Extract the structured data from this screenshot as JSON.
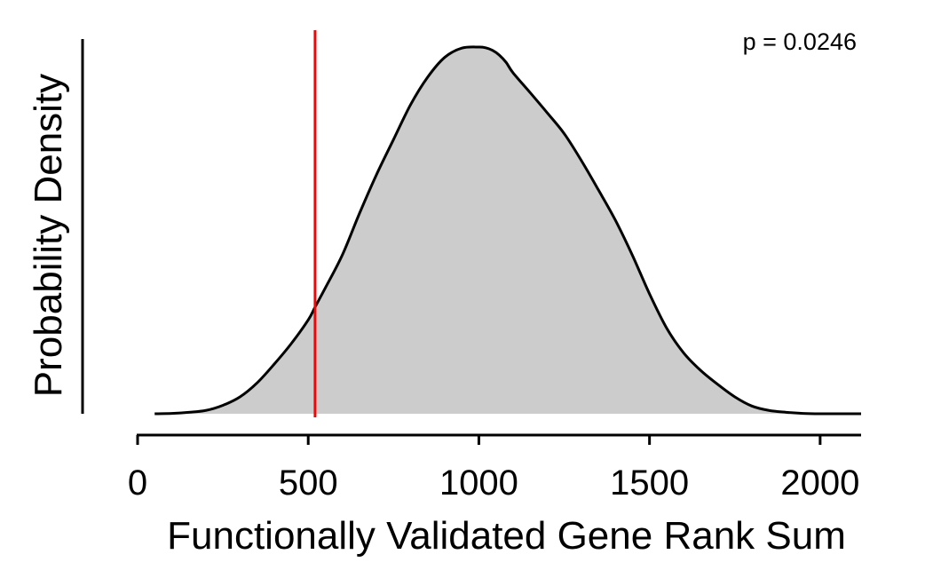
{
  "chart_data": {
    "type": "area",
    "title": "",
    "xlabel": "Functionally Validated Gene Rank Sum",
    "ylabel": "Probability Density",
    "xlim": [
      0,
      2120
    ],
    "ylim": [
      0,
      1.0
    ],
    "xticks": [
      0,
      500,
      1000,
      1500,
      2000
    ],
    "xtick_labels": [
      "0",
      "500",
      "1000",
      "1500",
      "2000"
    ],
    "y_ticks_shown": false,
    "grid": false,
    "legend": "none",
    "colors": {
      "fill": "#cccccc",
      "outline": "#000000",
      "marker_line": "#ff0000"
    },
    "series": [
      {
        "x": [
          50,
          100,
          150,
          200,
          250,
          300,
          350,
          400,
          450,
          500,
          520,
          550,
          600,
          650,
          700,
          750,
          800,
          850,
          900,
          950,
          1000,
          1020,
          1040,
          1060,
          1080,
          1100,
          1150,
          1200,
          1250,
          1300,
          1350,
          1400,
          1450,
          1500,
          1550,
          1600,
          1650,
          1700,
          1750,
          1800,
          1850,
          1900,
          1950,
          2000,
          2050,
          2120
        ],
        "y": [
          0.0,
          0.001,
          0.004,
          0.009,
          0.023,
          0.046,
          0.084,
          0.135,
          0.191,
          0.256,
          0.291,
          0.343,
          0.433,
          0.546,
          0.652,
          0.748,
          0.843,
          0.918,
          0.972,
          0.997,
          1.0,
          0.998,
          0.991,
          0.978,
          0.958,
          0.93,
          0.876,
          0.821,
          0.764,
          0.691,
          0.611,
          0.528,
          0.432,
          0.327,
          0.234,
          0.166,
          0.118,
          0.08,
          0.046,
          0.021,
          0.009,
          0.004,
          0.001,
          0.0,
          0.0,
          0.0
        ]
      }
    ],
    "observed_value": 520,
    "annotation": "p = 0.0246"
  }
}
